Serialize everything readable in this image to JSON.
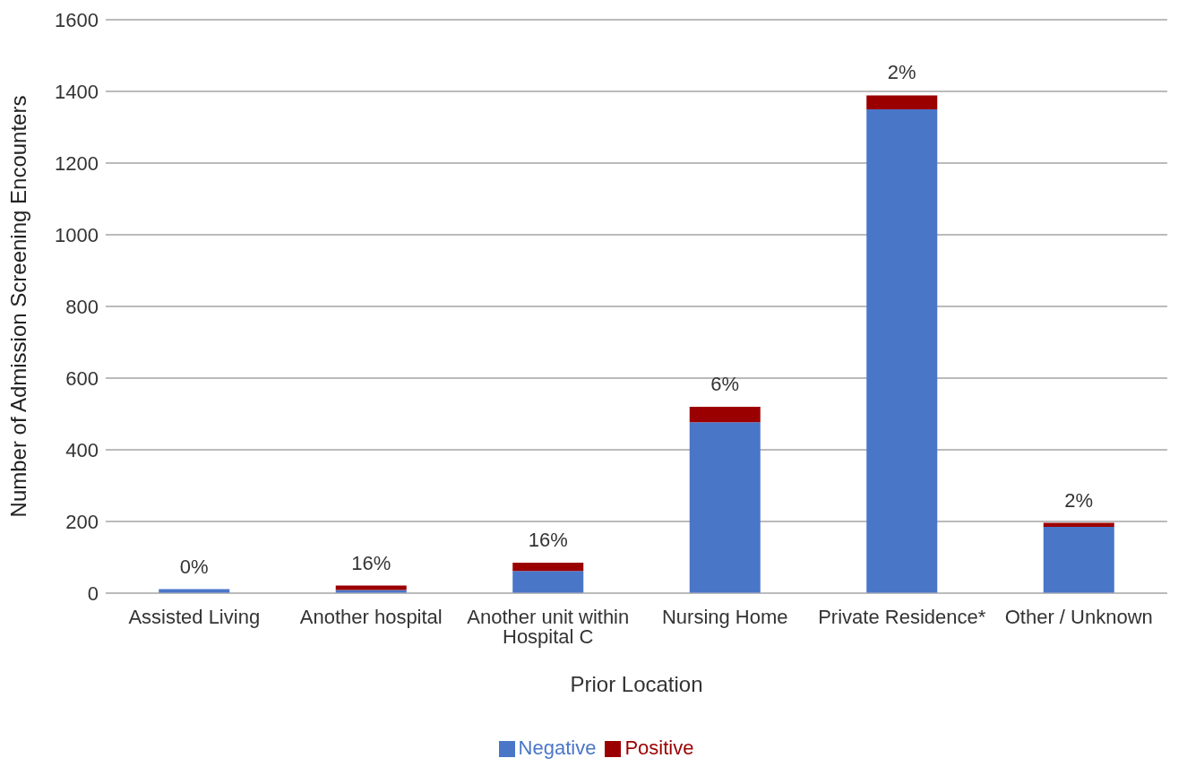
{
  "chart_data": {
    "type": "bar",
    "stacked": true,
    "xlabel": "Prior Location",
    "ylabel": "Number of Admission Screening Encounters",
    "categories": [
      "Assisted Living",
      "Another hospital",
      "Another unit within Hospital C",
      "Nursing Home",
      "Private Residence*",
      "Other / Unknown"
    ],
    "series": [
      {
        "name": "Negative",
        "color": "#4a76c8",
        "values": [
          11,
          9,
          62,
          477,
          1350,
          185
        ]
      },
      {
        "name": "Positive",
        "color": "#9b0000",
        "values": [
          0,
          12,
          23,
          43,
          39,
          11
        ]
      }
    ],
    "ylim": [
      0,
      1600
    ],
    "yticks": [
      0,
      200,
      400,
      600,
      800,
      1000,
      1200,
      1400,
      1600
    ],
    "grid": "y",
    "legend": "bottom",
    "annotations": [
      {
        "text": "0%",
        "x": "Assisted Living",
        "y": 11
      },
      {
        "text": "16%",
        "x": "Another hospital",
        "y": 21
      },
      {
        "text": "16%",
        "x": "Another unit within Hospital C",
        "y": 85
      },
      {
        "text": "6%",
        "x": "Nursing Home",
        "y": 520
      },
      {
        "text": "2%",
        "x": "Private Residence*",
        "y": 1389
      },
      {
        "text": "2%",
        "x": "Other / Unknown",
        "y": 196
      }
    ]
  }
}
